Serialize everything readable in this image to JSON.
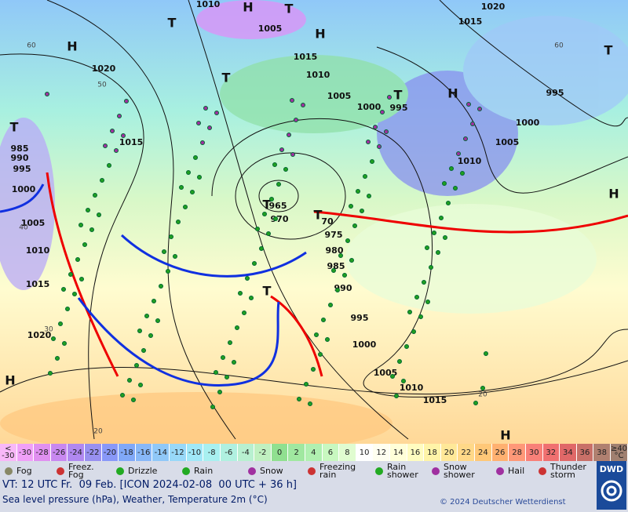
{
  "map": {
    "isobar_labels": [
      "1010",
      "1005",
      "1015",
      "1010",
      "1005",
      "1000",
      "995",
      "1015",
      "1020",
      "995",
      "1000",
      "1005",
      "1010",
      "1020",
      "1015",
      "985",
      "990",
      "995",
      "1000",
      "1005",
      "1010",
      "1015",
      "1020",
      "965",
      "970",
      "975",
      "980",
      "985",
      "990",
      "995",
      "1000",
      "1005",
      "1010",
      "1015",
      "70"
    ],
    "pressure_centers": [
      "H",
      "T",
      "H",
      "H",
      "T",
      "T",
      "T",
      "H",
      "T",
      "T",
      "T",
      "T",
      "T",
      "H",
      "H",
      "H"
    ],
    "temperature_labels": [
      "60",
      "50",
      "60",
      "40",
      "30",
      "20",
      "20"
    ]
  },
  "scale": {
    "below": {
      "symbol": "<",
      "value": "-30"
    },
    "values": [
      -30,
      -28,
      -26,
      -24,
      -22,
      -20,
      -18,
      -16,
      -14,
      -12,
      -10,
      -8,
      -6,
      -4,
      -2,
      0,
      2,
      4,
      6,
      8,
      10,
      12,
      14,
      16,
      18,
      20,
      22,
      24,
      26,
      28,
      30,
      32,
      34,
      36,
      38
    ],
    "colors": [
      "#f0a0f8",
      "#e090f0",
      "#c888f0",
      "#b088f0",
      "#9890f0",
      "#8898f8",
      "#80a8f8",
      "#88b8f8",
      "#90c8f8",
      "#98d8f8",
      "#a0e8f8",
      "#a8f0f0",
      "#b0f0e0",
      "#b8f0d0",
      "#c0f0c0",
      "#90e090",
      "#a0e8a0",
      "#b0f0b0",
      "#c8f8c0",
      "#e0fcd0",
      "#ffffff",
      "#fffff0",
      "#ffffd8",
      "#fffcc0",
      "#fff4a8",
      "#ffe898",
      "#ffd888",
      "#ffc878",
      "#ffb070",
      "#ff9878",
      "#f88078",
      "#f07070",
      "#e06868",
      "#c87068",
      "#b08070"
    ],
    "above": {
      "value": "≥40",
      "unit": "°C"
    }
  },
  "legend": [
    "Fog",
    "Freez. Fog",
    "Drizzle",
    "Rain",
    "Snow",
    "Freezing rain",
    "Rain shower",
    "Snow shower",
    "Hail",
    "Thunder storm"
  ],
  "footer": {
    "valid_time": "VT: 12 UTC Fr.  09 Feb. [ICON 2024-02-08  00 UTC + 36 h]",
    "description": "Sea level pressure (hPa), Weather, Temperature 2m (°C)",
    "copyright": "© 2024 Deutscher Wetterdienst",
    "logo": "DWD"
  }
}
